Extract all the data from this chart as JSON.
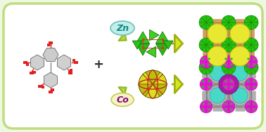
{
  "bg_outer": "#eef8e0",
  "bg_inner": "#ffffff",
  "border_color": "#c0dc80",
  "zn_ellipse_color": "#c0eee8",
  "zn_text": "Zn",
  "zn_text_color": "#108888",
  "co_ellipse_color": "#f4f4c0",
  "co_text": "Co",
  "co_text_color": "#880088",
  "arrow_fc": "#d4e820",
  "arrow_ec": "#a0b010",
  "mol_color": "#787878",
  "mol_red": "#e02020",
  "mof_zn_yellow": "#e8e830",
  "mof_zn_green": "#28c010",
  "mof_zn_green_dark": "#108000",
  "mof_zn_tan": "#d0a060",
  "mof_zn_tan_dark": "#b08040",
  "mof_co_cyan": "#48d8c8",
  "mof_co_purple": "#a020a0",
  "mof_co_magenta": "#e020d0",
  "mof_co_magenta_dark": "#c000b0",
  "mof_co_grey": "#b0b0b0",
  "mof_co_grey_dark": "#808080",
  "zn_cluster_green": "#20c010",
  "zn_cluster_green2": "#40d820",
  "zn_cluster_dark": "#086000",
  "co_cluster_yellow": "#b8c010",
  "co_cluster_yellow2": "#d8e020",
  "co_cluster_dark": "#606000"
}
